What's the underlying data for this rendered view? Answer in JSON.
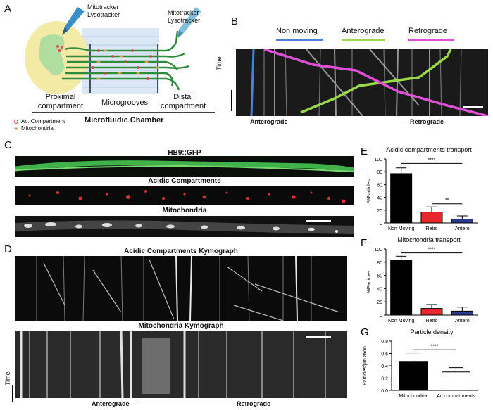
{
  "panel_a": {
    "letter": "A",
    "probe_left_label": "Mitotracker\nLysotracker",
    "probe_right_label": "Mitotracker\nLysotracker",
    "proximal_label": "Proximal\ncompartment",
    "microgrooves_label": "Microgrooves",
    "distal_label": "Distal\ncompartment",
    "chamber_label": "Microfluidic Chamber",
    "legend_ac": "Ac. Compartment",
    "legend_mito": "Mitochondria"
  },
  "panel_b": {
    "letter": "B",
    "legend": [
      {
        "label": "Non moving",
        "color": "#4a7fe0"
      },
      {
        "label": "Anterograde",
        "color": "#9bd94a"
      },
      {
        "label": "Retrograde",
        "color": "#e04fd8"
      }
    ],
    "time_label": "Time",
    "anterograde_label": "Anterograde",
    "retrograde_label": "Retrograde"
  },
  "panel_c": {
    "letter": "C",
    "strip1_title": "HB9::GFP",
    "strip2_title": "Acidic Compartments",
    "strip3_title": "Mitochondria"
  },
  "panel_d": {
    "letter": "D",
    "kymo1_title": "Acidic Compartments Kymograph",
    "kymo2_title": "Mitochondria Kymograph",
    "time_label": "Time",
    "anterograde_label": "Anterograde",
    "retrograde_label": "Retrograde"
  },
  "chart_data": [
    {
      "letter": "E",
      "type": "bar",
      "title": "Acidic compartments transport",
      "ylabel": "%Particles",
      "xlabel": "",
      "categories": [
        "Non Moving",
        "Retro",
        "Antero"
      ],
      "values": [
        77,
        17,
        6
      ],
      "errors": [
        9,
        8,
        5
      ],
      "colors": [
        "#000000",
        "#e8262b",
        "#2b3a8f"
      ],
      "ylim": [
        0,
        100
      ],
      "yticks": [
        0,
        20,
        40,
        60,
        80,
        100
      ],
      "significance": [
        {
          "from": 0,
          "to": 2,
          "label": "****",
          "y": 93
        },
        {
          "from": 1,
          "to": 2,
          "label": "**",
          "y": 30
        }
      ]
    },
    {
      "letter": "F",
      "type": "bar",
      "title": "Mitochondria transport",
      "ylabel": "%Particles",
      "xlabel": "",
      "categories": [
        "Non Moving",
        "Retro",
        "Antero"
      ],
      "values": [
        83,
        10,
        6
      ],
      "errors": [
        6,
        6,
        6
      ],
      "colors": [
        "#000000",
        "#e8262b",
        "#2b3a8f"
      ],
      "ylim": [
        0,
        100
      ],
      "yticks": [
        0,
        20,
        40,
        60,
        80,
        100
      ],
      "significance": [
        {
          "from": 0,
          "to": 2,
          "label": "****",
          "y": 94
        }
      ]
    },
    {
      "letter": "G",
      "type": "bar",
      "title": "Particle density",
      "ylabel": "Particles/μm axon",
      "xlabel": "",
      "categories": [
        "Mitochondria",
        "Ac.compartments"
      ],
      "values": [
        0.46,
        0.3
      ],
      "errors": [
        0.13,
        0.07
      ],
      "colors": [
        "#000000",
        "#ffffff"
      ],
      "ylim": [
        0,
        0.8
      ],
      "yticks": [
        0.0,
        0.2,
        0.4,
        0.6,
        0.8
      ],
      "significance": [
        {
          "from": 0,
          "to": 1,
          "label": "****",
          "y": 0.66
        }
      ]
    }
  ]
}
